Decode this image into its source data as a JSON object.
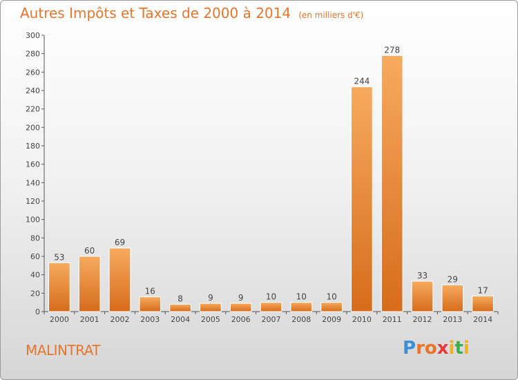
{
  "header": {
    "title": "Autres Impôts et Taxes de 2000 à 2014",
    "subtitle": "(en milliers d'€)"
  },
  "commune": "MALINTRAT",
  "logo": {
    "text": "Proxiti",
    "parts": [
      "P",
      "r",
      "o",
      "x",
      "i",
      "t",
      "i"
    ]
  },
  "colors": {
    "bar_top": "#f5a55a",
    "bar_bottom": "#d86e1e",
    "accent": "#e8752a"
  },
  "chart_data": {
    "type": "bar",
    "title": "Autres Impôts et Taxes de 2000 à 2014",
    "subtitle": "(en milliers d'€)",
    "categories": [
      "2000",
      "2001",
      "2002",
      "2003",
      "2004",
      "2005",
      "2006",
      "2007",
      "2008",
      "2009",
      "2010",
      "2011",
      "2012",
      "2013",
      "2014"
    ],
    "values": [
      53,
      60,
      69,
      16,
      8,
      9,
      9,
      10,
      10,
      10,
      244,
      278,
      33,
      29,
      17
    ],
    "ylim": [
      0,
      300
    ],
    "yticks": [
      0,
      20,
      40,
      60,
      80,
      100,
      120,
      140,
      160,
      180,
      200,
      220,
      240,
      260,
      280,
      300
    ],
    "grid": false,
    "xlabel": "",
    "ylabel": ""
  }
}
